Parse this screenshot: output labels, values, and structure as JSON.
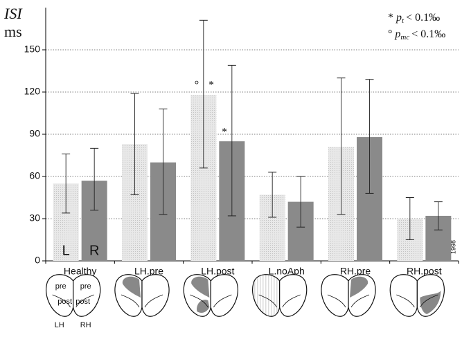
{
  "chart_data": {
    "type": "bar",
    "y_label_top": "ISI",
    "y_label_unit": "ms",
    "categories": [
      "Healthy",
      "LH.pre",
      "LH.post",
      "L.noAph",
      "RH.pre",
      "RH.post"
    ],
    "series": [
      {
        "name": "L",
        "color": "#dcdcdc",
        "values": [
          55,
          83,
          118,
          47,
          81,
          30
        ],
        "lower": [
          34,
          47,
          66,
          31,
          33,
          15
        ],
        "upper": [
          76,
          119,
          171,
          63,
          130,
          45
        ]
      },
      {
        "name": "R",
        "color": "#8a8a8a",
        "values": [
          57,
          70,
          85,
          42,
          88,
          32
        ],
        "lower": [
          36,
          33,
          32,
          24,
          48,
          22
        ],
        "upper": [
          80,
          108,
          139,
          60,
          129,
          42
        ]
      }
    ],
    "ylim": [
      0,
      180
    ],
    "yticks": [
      0,
      30,
      60,
      90,
      120,
      150
    ],
    "grid": true,
    "legend_notes": [
      {
        "symbol": "*",
        "var": "p",
        "sub": "t",
        "rest": "< 0.1‰"
      },
      {
        "symbol": "°",
        "var": "p",
        "sub": "mc",
        "rest": "< 0.1‰"
      }
    ],
    "markers": [
      "°",
      "*",
      "*"
    ],
    "year": "1998",
    "brain_labels": {
      "pre_left": "pre",
      "pre_right": "pre",
      "post_left": "post",
      "post_right": "post",
      "lh": "LH",
      "rh": "RH"
    }
  }
}
